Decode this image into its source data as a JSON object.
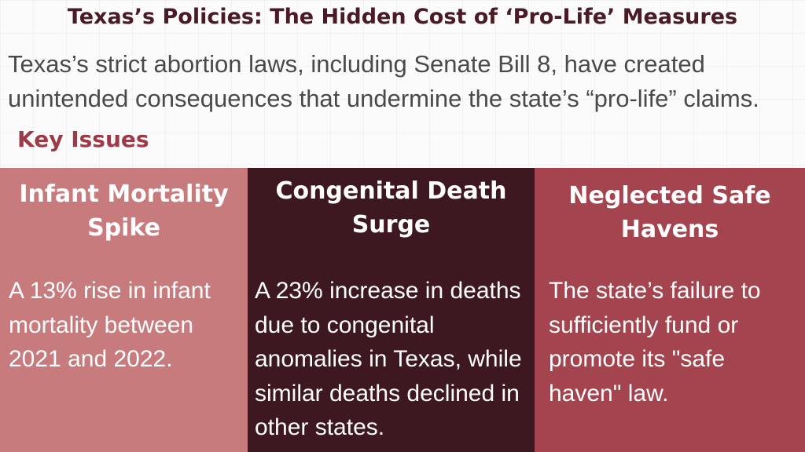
{
  "header": {
    "title": "Texas’s Policies: The Hidden Cost of ‘Pro-Life’ Measures"
  },
  "intro": {
    "text": "Texas’s strict abortion laws, including Senate Bill 8, have created unintended consequences that undermine the state’s “pro-life” claims."
  },
  "key_issues": {
    "heading": "Key Issues",
    "cards": [
      {
        "title": "Infant Mortality Spike",
        "body": "A 13% rise in infant mortality between 2021 and 2022.",
        "color": "#c77b7d"
      },
      {
        "title": "Congenital Death Surge",
        "body": "A 23% increase in deaths due to congenital anomalies in Texas, while similar deaths declined in other states.",
        "color": "#3e1820"
      },
      {
        "title": "Neglected Safe Havens",
        "body": "The state’s failure to sufficiently fund or promote its \"safe haven\" law.",
        "color": "#a3444e"
      }
    ]
  },
  "colors": {
    "title": "#4a1a26",
    "heading": "#9c3a48",
    "intro_text": "#4a4a4a"
  }
}
